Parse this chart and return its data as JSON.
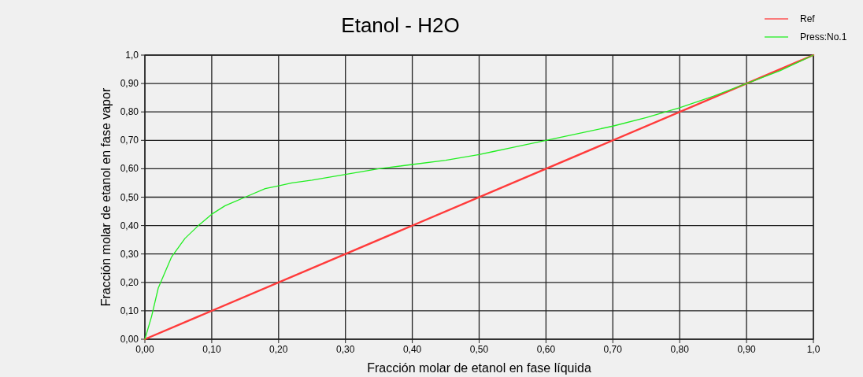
{
  "chart_data": {
    "type": "line",
    "title": "Etanol - H2O",
    "xlabel": "Fracción molar de etanol en fase líquida",
    "ylabel": "Fracción molar de etanol en fase vapor",
    "xlim": [
      0,
      1
    ],
    "ylim": [
      0,
      1
    ],
    "xticks": [
      {
        "value": 0,
        "label": "0,00"
      },
      {
        "value": 0.1,
        "label": "0,10"
      },
      {
        "value": 0.2,
        "label": "0,20"
      },
      {
        "value": 0.3,
        "label": "0,30"
      },
      {
        "value": 0.4,
        "label": "0,40"
      },
      {
        "value": 0.5,
        "label": "0,50"
      },
      {
        "value": 0.6,
        "label": "0,60"
      },
      {
        "value": 0.7,
        "label": "0,70"
      },
      {
        "value": 0.8,
        "label": "0,80"
      },
      {
        "value": 0.9,
        "label": "0,90"
      },
      {
        "value": 1,
        "label": "1,0"
      }
    ],
    "yticks": [
      {
        "value": 0,
        "label": "0,00"
      },
      {
        "value": 0.1,
        "label": "0,10"
      },
      {
        "value": 0.2,
        "label": "0,20"
      },
      {
        "value": 0.3,
        "label": "0,30"
      },
      {
        "value": 0.4,
        "label": "0,40"
      },
      {
        "value": 0.5,
        "label": "0,50"
      },
      {
        "value": 0.6,
        "label": "0,60"
      },
      {
        "value": 0.7,
        "label": "0,70"
      },
      {
        "value": 0.8,
        "label": "0,80"
      },
      {
        "value": 0.9,
        "label": "0,90"
      },
      {
        "value": 1,
        "label": "1,0"
      }
    ],
    "grid": true,
    "legend": "top right",
    "marker": "none",
    "line_style": "solid",
    "series": [
      {
        "name": "Ref",
        "color": "#ff3b3b",
        "x": [
          0,
          1
        ],
        "values": [
          0,
          1
        ]
      },
      {
        "name": "Press:No.1",
        "color": "#22ee22",
        "x": [
          0,
          0.01,
          0.02,
          0.04,
          0.06,
          0.08,
          0.1,
          0.12,
          0.15,
          0.18,
          0.2,
          0.22,
          0.25,
          0.3,
          0.35,
          0.4,
          0.45,
          0.5,
          0.52,
          0.55,
          0.6,
          0.65,
          0.7,
          0.75,
          0.8,
          0.85,
          0.9,
          0.95,
          1
        ],
        "values": [
          0,
          0.08,
          0.18,
          0.29,
          0.355,
          0.4,
          0.44,
          0.47,
          0.5,
          0.53,
          0.54,
          0.55,
          0.56,
          0.58,
          0.6,
          0.615,
          0.63,
          0.65,
          0.66,
          0.675,
          0.7,
          0.725,
          0.75,
          0.78,
          0.815,
          0.855,
          0.9,
          0.945,
          1
        ]
      }
    ]
  }
}
